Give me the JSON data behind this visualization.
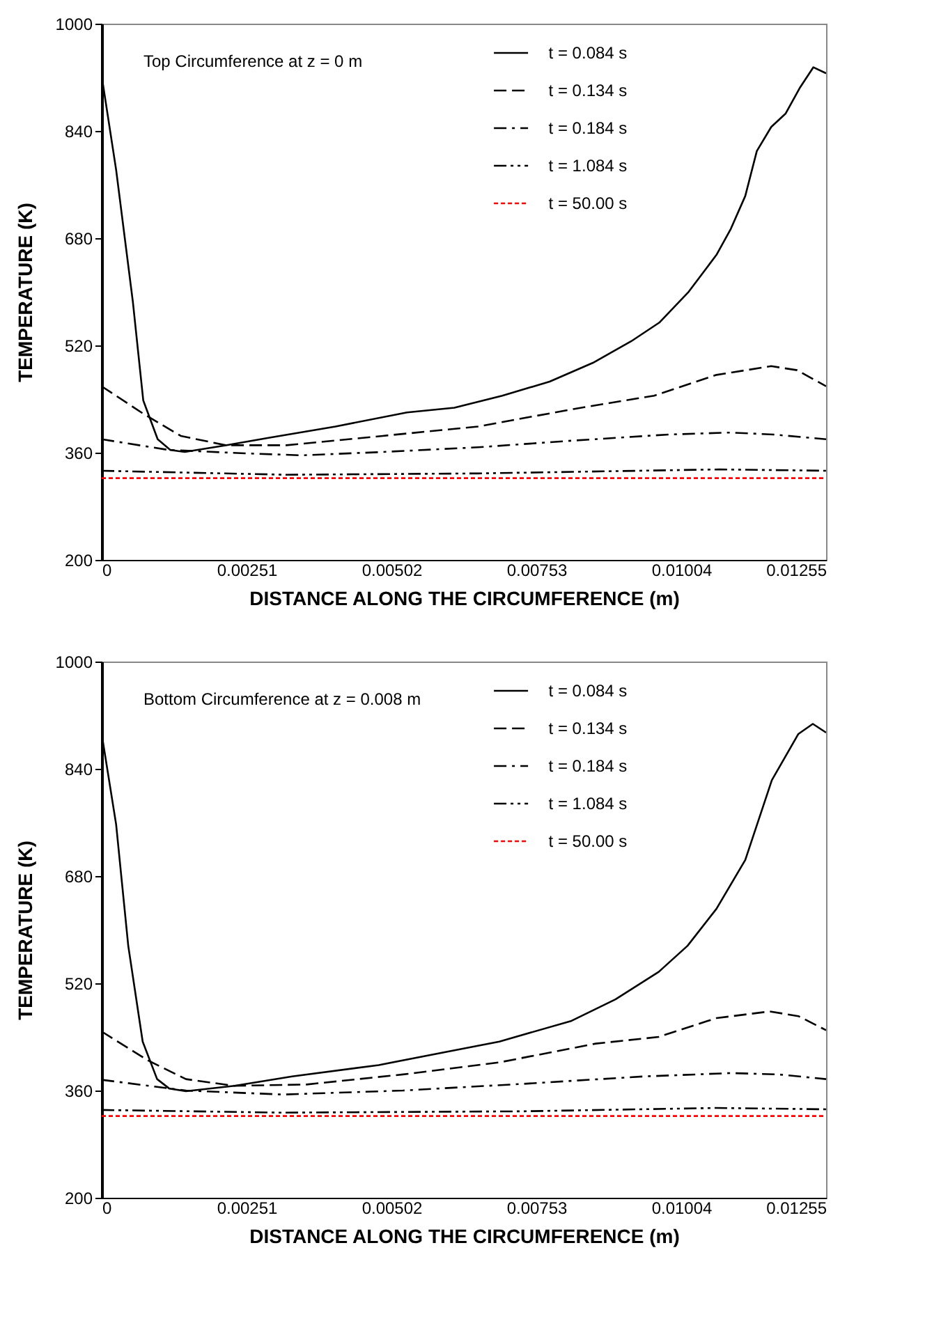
{
  "chart_data": [
    {
      "type": "line",
      "xlabel": "DISTANCE ALONG THE CIRCUMFERENCE (m)",
      "ylabel": "TEMPERATURE (K)",
      "annotations": [
        "Top Circumference at  z = 0 m"
      ],
      "xlim": [
        0,
        0.01255
      ],
      "xticks": [
        0,
        0.00251,
        0.00502,
        0.00753,
        0.01004,
        0.01255
      ],
      "ylim": [
        200,
        1000
      ],
      "yticks": [
        200,
        360,
        520,
        680,
        840,
        1000
      ],
      "grid": false,
      "legend": "top right",
      "marker": "none",
      "series": [
        {
          "name": "t = 0.084 s",
          "color": "#000000",
          "line_style": "solid",
          "x": [
            0,
            0.00025,
            0.00054,
            0.00072,
            0.00097,
            0.00119,
            0.00144,
            0.00215,
            0.00289,
            0.00405,
            0.00529,
            0.00611,
            0.00694,
            0.00776,
            0.00851,
            0.00917,
            0.00966,
            0.01016,
            0.01065,
            0.0109,
            0.01115,
            0.01135,
            0.0116,
            0.01185,
            0.0121,
            0.01233,
            0.01255
          ],
          "values": [
            922,
            782,
            585,
            438,
            380,
            364,
            361,
            371,
            382,
            399,
            420,
            427,
            445,
            466,
            494,
            526,
            554,
            599,
            655,
            694,
            743,
            810,
            846,
            866,
            905,
            935,
            926
          ]
        },
        {
          "name": "t = 0.134 s",
          "color": "#000000",
          "line_style": "dashed",
          "x": [
            0,
            0.00074,
            0.00137,
            0.00215,
            0.0032,
            0.00487,
            0.00652,
            0.00817,
            0.00957,
            0.01065,
            0.0116,
            0.01205,
            0.01255
          ],
          "values": [
            459,
            417,
            385,
            371,
            371,
            385,
            399,
            425,
            445,
            476,
            489,
            483,
            459
          ]
        },
        {
          "name": "t = 0.184 s",
          "color": "#000000",
          "line_style": "dashdot",
          "x": [
            0,
            0.00116,
            0.00248,
            0.00347,
            0.00487,
            0.00652,
            0.00817,
            0.00982,
            0.0109,
            0.01164,
            0.01255
          ],
          "values": [
            380,
            364,
            359,
            356,
            361,
            368,
            378,
            387,
            390,
            387,
            380
          ]
        },
        {
          "name": "t = 1.084 s",
          "color": "#000000",
          "line_style": "dashdotdot",
          "x": [
            0,
            0.0032,
            0.00652,
            0.0107,
            0.01255
          ],
          "values": [
            333,
            327,
            329,
            335,
            333
          ]
        },
        {
          "name": "t = 50.00 s",
          "color": "#ff0000",
          "line_style": "dotted",
          "x": [
            0,
            0.01255
          ],
          "values": [
            322,
            322
          ]
        }
      ]
    },
    {
      "type": "line",
      "xlabel": "DISTANCE ALONG THE CIRCUMFERENCE (m)",
      "ylabel": "TEMPERATURE (K)",
      "annotations": [
        "Bottom Circumference  at  z = 0.008 m"
      ],
      "xlim": [
        0,
        0.01255
      ],
      "xticks": [
        0,
        0.00251,
        0.00502,
        0.00753,
        0.01004,
        0.01255
      ],
      "ylim": [
        200,
        1000
      ],
      "yticks": [
        200,
        360,
        520,
        680,
        840,
        1000
      ],
      "grid": false,
      "legend": "top right",
      "marker": "none",
      "series": [
        {
          "name": "t = 0.084 s",
          "color": "#000000",
          "line_style": "solid",
          "x": [
            0,
            0.00025,
            0.00046,
            0.00071,
            0.00096,
            0.00117,
            0.00146,
            0.0023,
            0.0033,
            0.0048,
            0.00605,
            0.00689,
            0.00814,
            0.0089,
            0.00965,
            0.01015,
            0.01065,
            0.01115,
            0.01161,
            0.01207,
            0.01232,
            0.01255
          ],
          "values": [
            892,
            757,
            576,
            433,
            377,
            363,
            359,
            367,
            381,
            398,
            419,
            433,
            464,
            496,
            537,
            576,
            631,
            704,
            823,
            892,
            907,
            894
          ]
        },
        {
          "name": "t = 0.134 s",
          "color": "#000000",
          "line_style": "dashed",
          "x": [
            0,
            0.0008,
            0.00146,
            0.0023,
            0.00355,
            0.00522,
            0.00689,
            0.00856,
            0.00965,
            0.01065,
            0.01157,
            0.01207,
            0.01255
          ],
          "values": [
            448,
            405,
            377,
            367,
            369,
            384,
            402,
            430,
            440,
            468,
            478,
            471,
            450
          ]
        },
        {
          "name": "t = 0.184 s",
          "color": "#000000",
          "line_style": "dashdot",
          "x": [
            0,
            0.00146,
            0.00313,
            0.00522,
            0.00731,
            0.00939,
            0.0109,
            0.01173,
            0.01255
          ],
          "values": [
            376,
            360,
            354,
            360,
            370,
            381,
            386,
            384,
            377
          ]
        },
        {
          "name": "t = 1.084 s",
          "color": "#000000",
          "line_style": "dashdotdot",
          "x": [
            0,
            0.00313,
            0.00731,
            0.01065,
            0.01255
          ],
          "values": [
            331,
            327,
            329,
            334,
            332
          ]
        },
        {
          "name": "t = 50.00 s",
          "color": "#ff0000",
          "line_style": "dotted",
          "x": [
            0,
            0.01255
          ],
          "values": [
            322,
            322
          ]
        }
      ]
    }
  ]
}
